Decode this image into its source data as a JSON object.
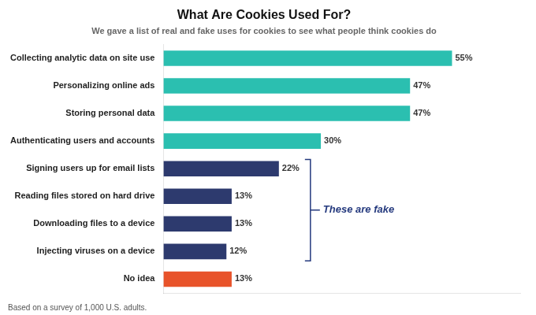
{
  "chart_data": {
    "type": "bar",
    "orientation": "horizontal",
    "title": "What Are Cookies Used For?",
    "subtitle": "We gave a list of real and fake uses for cookies to see what people think cookies do",
    "categories": [
      "Collecting analytic data on site use",
      "Personalizing online ads",
      "Storing personal data",
      "Authenticating users and accounts",
      "Signing users up for email lists",
      "Reading files stored on hard drive",
      "Downloading files to a device",
      "Injecting viruses on a device",
      "No idea"
    ],
    "values": [
      55,
      47,
      47,
      30,
      22,
      13,
      13,
      12,
      13
    ],
    "value_labels": [
      "55%",
      "47%",
      "47%",
      "30%",
      "22%",
      "13%",
      "13%",
      "12%",
      "13%"
    ],
    "data_labels": true,
    "colors": [
      "#2bbfb0",
      "#2bbfb0",
      "#2bbfb0",
      "#2bbfb0",
      "#2d3a6e",
      "#2d3a6e",
      "#2d3a6e",
      "#2d3a6e",
      "#e8532a"
    ],
    "xlim": [
      0,
      68
    ],
    "tick_labels": "y",
    "grid": false,
    "annotations": [
      {
        "text": "These are fake",
        "color": "#253a7e",
        "categories": [
          "Signing users up for email lists",
          "Reading files stored on hard drive",
          "Downloading files to a device",
          "Injecting viruses on a device"
        ]
      }
    ],
    "footnote": "Based on a survey of 1,000 U.S. adults."
  }
}
